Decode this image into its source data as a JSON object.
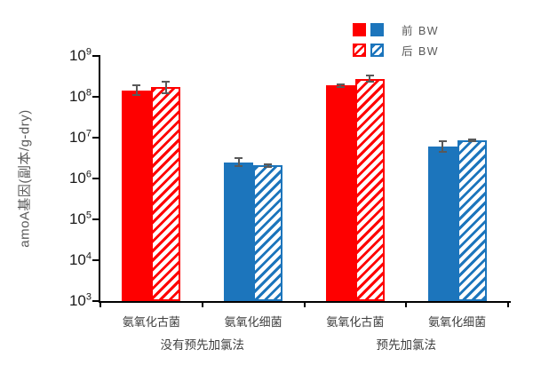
{
  "colors": {
    "red": "#FE0000",
    "blue": "#1C75BC",
    "error_bar": "#595959",
    "axis": "#000000",
    "tick_label": "#1a1a1a",
    "category_label": "#3f3f3f",
    "legend_text": "#595959"
  },
  "legend": {
    "rows": [
      {
        "label": "前 BW",
        "style": "solid"
      },
      {
        "label": "后 BW",
        "style": "hatched"
      }
    ]
  },
  "chart_data": {
    "type": "bar",
    "y_scale": "log",
    "ylim": [
      1000.0,
      1000000000.0
    ],
    "ylabel": "amoA基因(副本/g-dry)",
    "unit": "副本/g-dry",
    "y_tick_base": "10",
    "y_tick_exponents": [
      "9",
      "8",
      "7",
      "6",
      "5",
      "4",
      "3"
    ],
    "grid": false,
    "legend_position": "top-right",
    "groups": [
      {
        "label": "没有预先加氯法",
        "categories": [
          {
            "label": "氨氧化古菌",
            "color": "red",
            "bars": [
              {
                "series": "前 BW",
                "style": "solid",
                "value": 140000000.0,
                "err_low": 110000000.0,
                "err_high": 190000000.0
              },
              {
                "series": "后 BW",
                "style": "hatched",
                "value": 170000000.0,
                "err_low": 125000000.0,
                "err_high": 240000000.0
              }
            ]
          },
          {
            "label": "氨氧化细菌",
            "color": "blue",
            "bars": [
              {
                "series": "前 BW",
                "style": "solid",
                "value": 2500000.0,
                "err_low": 2000000.0,
                "err_high": 3200000.0
              },
              {
                "series": "后 BW",
                "style": "hatched",
                "value": 2100000.0,
                "err_low": 1950000.0,
                "err_high": 2250000.0
              }
            ]
          }
        ]
      },
      {
        "label": "预先加氯法",
        "categories": [
          {
            "label": "氨氧化古菌",
            "color": "red",
            "bars": [
              {
                "series": "前 BW",
                "style": "solid",
                "value": 190000000.0,
                "err_low": 175000000.0,
                "err_high": 205000000.0
              },
              {
                "series": "后 BW",
                "style": "hatched",
                "value": 270000000.0,
                "err_low": 230000000.0,
                "err_high": 340000000.0
              }
            ]
          },
          {
            "label": "氨氧化细菌",
            "color": "blue",
            "bars": [
              {
                "series": "前 BW",
                "style": "solid",
                "value": 6000000.0,
                "err_low": 4500000.0,
                "err_high": 8000000.0
              },
              {
                "series": "后 BW",
                "style": "hatched",
                "value": 8500000.0,
                "err_low": 8000000.0,
                "err_high": 9200000.0
              }
            ]
          }
        ]
      }
    ]
  }
}
